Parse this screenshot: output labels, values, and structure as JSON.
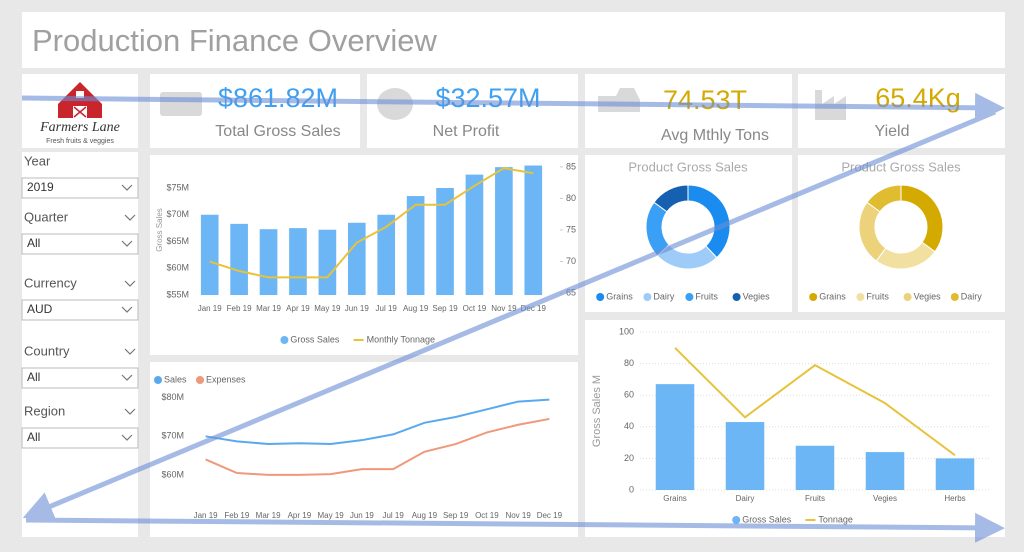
{
  "header": {
    "title": "Production Finance Overview"
  },
  "logo": {
    "name": "Farmers Lane",
    "tagline": "Fresh fruits & veggies"
  },
  "kpis": [
    {
      "value": "$861.82M",
      "label": "Total Gross Sales",
      "color": "#3ea0f0"
    },
    {
      "value": "$32.57M",
      "label": "Net Profit",
      "color": "#3ea0f0"
    },
    {
      "value": "74.53T",
      "label": "Avg Mthly Tons",
      "color": "#d4a900"
    },
    {
      "value": "65.4Kg",
      "label": "Yield",
      "color": "#d4a900"
    }
  ],
  "filters": [
    {
      "label": "Year",
      "value": "2019"
    },
    {
      "label": "Quarter",
      "value": "All"
    },
    {
      "label": "Currency",
      "value": "AUD"
    },
    {
      "label": "Country",
      "value": "All"
    },
    {
      "label": "Region",
      "value": "All"
    }
  ],
  "chart_data": [
    {
      "type": "combo",
      "y_label": "Gross Sales",
      "legend": "bottom",
      "categories": [
        "Jan 19",
        "Feb 19",
        "Mar 19",
        "Apr 19",
        "May 19",
        "Jun 19",
        "Jul 19",
        "Aug 19",
        "Sep 19",
        "Oct 19",
        "Nov 19",
        "Dec 19"
      ],
      "ylim": [
        55,
        79.3
      ],
      "yticks": [
        {
          "value": 55,
          "label": "$55M"
        },
        {
          "value": 60,
          "label": "$60M"
        },
        {
          "value": 65,
          "label": "$65M"
        },
        {
          "value": 70,
          "label": "$70M"
        },
        {
          "value": 75,
          "label": "$75M"
        }
      ],
      "y2lim": [
        64.7,
        85.3
      ],
      "y2ticks": [
        65,
        70,
        75,
        80,
        85
      ],
      "series": [
        {
          "name": "Gross Sales",
          "type": "bar",
          "color": "#6cb6f5",
          "values": [
            70,
            68.3,
            67.3,
            67.5,
            67.2,
            68.5,
            70,
            73.5,
            75,
            77.5,
            78.9,
            79.2
          ]
        },
        {
          "name": "Monthly Tonnage",
          "type": "line",
          "axis": "y2",
          "color": "#e8c23a",
          "values": [
            70,
            68.5,
            67.5,
            67.5,
            67.5,
            73,
            75.5,
            79,
            79,
            82,
            84.8,
            84
          ]
        }
      ]
    },
    {
      "type": "donut",
      "title": "Product Gross Sales",
      "categories": [
        "Grains",
        "Dairy",
        "Fruits",
        "Vegies"
      ],
      "colors": [
        "#1a8cf0",
        "#9ecbf7",
        "#3aa0f5",
        "#1560b0"
      ],
      "values": [
        38,
        25,
        22,
        15
      ]
    },
    {
      "type": "donut",
      "title": "Product Gross Sales",
      "categories": [
        "Grains",
        "Fruits",
        "Vegies",
        "Dairy"
      ],
      "colors": [
        "#d4a900",
        "#f2e0a0",
        "#ecd27a",
        "#e0bc30"
      ],
      "values": [
        35,
        25,
        25,
        15
      ]
    },
    {
      "type": "combo",
      "y_label": "Gross Sales M",
      "legend": "bottom",
      "grid": true,
      "categories": [
        "Grains",
        "Dairy",
        "Fruits",
        "Vegies",
        "Herbs"
      ],
      "ylim": [
        0,
        100
      ],
      "yticks": [
        0,
        20,
        40,
        60,
        80,
        100
      ],
      "series": [
        {
          "name": "Gross Sales",
          "type": "bar",
          "color": "#6cb6f5",
          "values": [
            67,
            43,
            28,
            24,
            20
          ]
        },
        {
          "name": "Tonnage",
          "type": "line",
          "color": "#e8c23a",
          "values": [
            90,
            46,
            79,
            55,
            22
          ]
        }
      ]
    },
    {
      "type": "line",
      "legend": "top-left",
      "categories": [
        "Jan 19",
        "Feb 19",
        "Mar 19",
        "Apr 19",
        "May 19",
        "Jun 19",
        "Jul 19",
        "Aug 19",
        "Sep 19",
        "Oct 19",
        "Nov 19",
        "Dec 19"
      ],
      "ylim": [
        53.5,
        82
      ],
      "yticks": [
        {
          "value": 60,
          "label": "$60M"
        },
        {
          "value": 70,
          "label": "$70M"
        },
        {
          "value": 80,
          "label": "$80M"
        }
      ],
      "series": [
        {
          "name": "Sales",
          "type": "line",
          "color": "#5aa9f0",
          "values": [
            70,
            68.7,
            68,
            68.2,
            68,
            69,
            70.5,
            73.5,
            75,
            77,
            79,
            79.5
          ]
        },
        {
          "name": "Expenses",
          "type": "line",
          "color": "#f0987a",
          "values": [
            64,
            60.5,
            60,
            60,
            60.2,
            61.5,
            61.5,
            66,
            68,
            71,
            73,
            74.5
          ]
        }
      ]
    }
  ]
}
